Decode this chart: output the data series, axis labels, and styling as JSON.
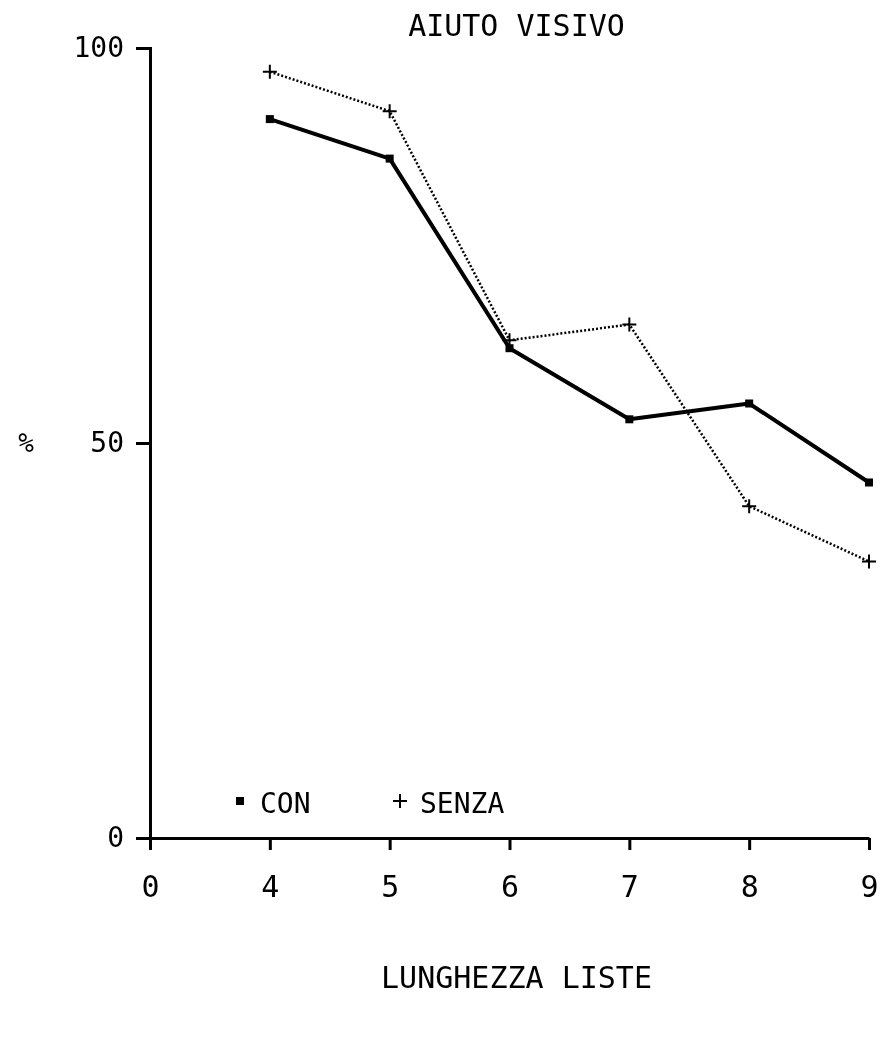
{
  "chart_data": {
    "type": "line",
    "title": "AIUTO VISIVO",
    "xlabel": "LUNGHEZZA LISTE",
    "ylabel": "%",
    "categories": [
      "0",
      "4",
      "5",
      "6",
      "7",
      "8",
      "9"
    ],
    "ylim": [
      0,
      100
    ],
    "yticks": [
      0,
      50,
      100
    ],
    "legend": "bottom left",
    "series": [
      {
        "name": "CON",
        "color": "#000000",
        "marker": "square",
        "line_style": "solid",
        "values": [
          null,
          91,
          86,
          62,
          53,
          55,
          45
        ]
      },
      {
        "name": "SENZA",
        "color": "#000000",
        "marker": "cross",
        "line_style": "dotted",
        "values": [
          null,
          97,
          92,
          63,
          65,
          42,
          35
        ]
      }
    ]
  }
}
